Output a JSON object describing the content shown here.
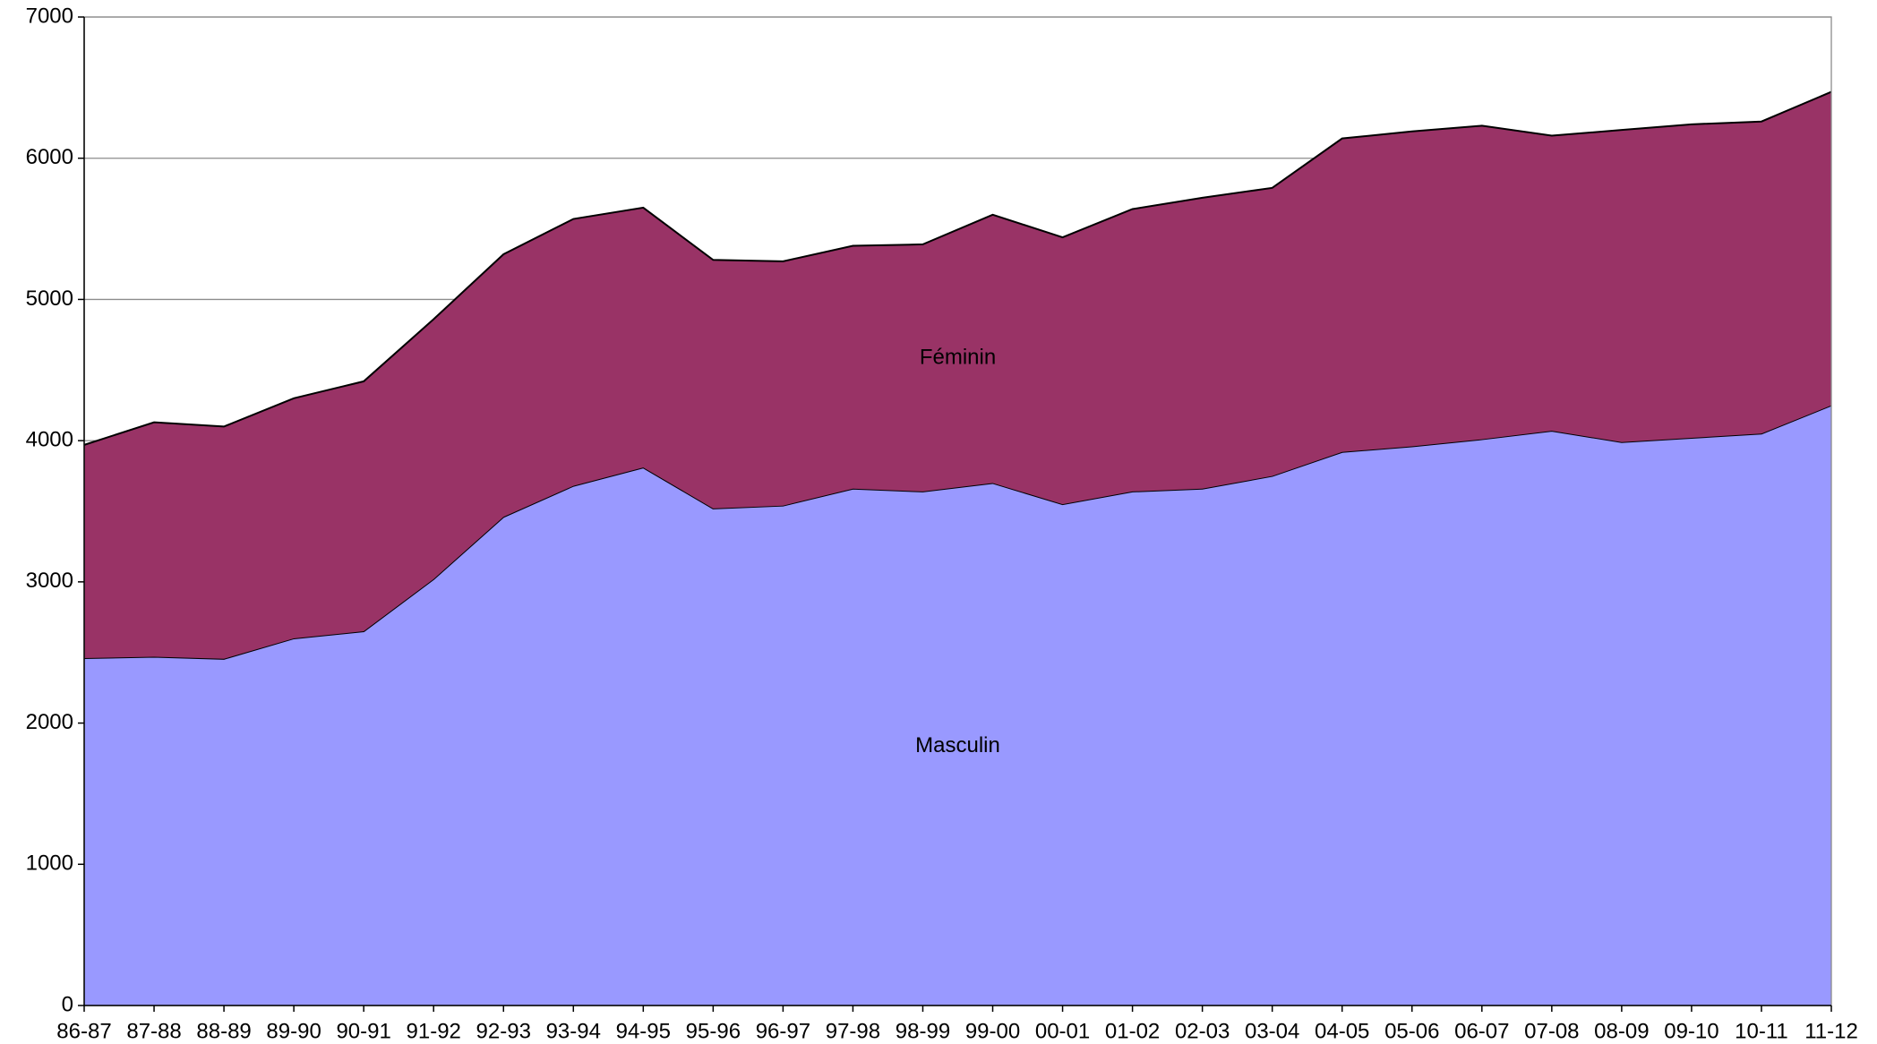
{
  "chart_data": {
    "type": "stacked-area",
    "categories": [
      "86-87",
      "87-88",
      "88-89",
      "89-90",
      "90-91",
      "91-92",
      "92-93",
      "93-94",
      "94-95",
      "95-96",
      "96-97",
      "97-98",
      "98-99",
      "99-00",
      "00-01",
      "01-02",
      "02-03",
      "03-04",
      "04-05",
      "05-06",
      "06-07",
      "07-08",
      "08-09",
      "09-10",
      "10-11",
      "11-12"
    ],
    "series": [
      {
        "name": "Masculin",
        "color": "#9999ff",
        "values": [
          2460,
          2470,
          2455,
          2600,
          2650,
          3020,
          3460,
          3680,
          3810,
          3520,
          3540,
          3660,
          3640,
          3700,
          3550,
          3640,
          3660,
          3750,
          3920,
          3960,
          4010,
          4070,
          3990,
          4020,
          4050,
          4250
        ]
      },
      {
        "name": "Féminin",
        "color": "#993366",
        "values": [
          1510,
          1660,
          1645,
          1700,
          1770,
          1840,
          1860,
          1890,
          1840,
          1760,
          1730,
          1720,
          1750,
          1900,
          1890,
          2000,
          2060,
          2040,
          2220,
          2230,
          2220,
          2090,
          2210,
          2220,
          2210,
          2220
        ]
      }
    ],
    "ylim": [
      0,
      7000
    ],
    "yticks": [
      0,
      1000,
      2000,
      3000,
      4000,
      5000,
      6000,
      7000
    ],
    "grid": true
  }
}
